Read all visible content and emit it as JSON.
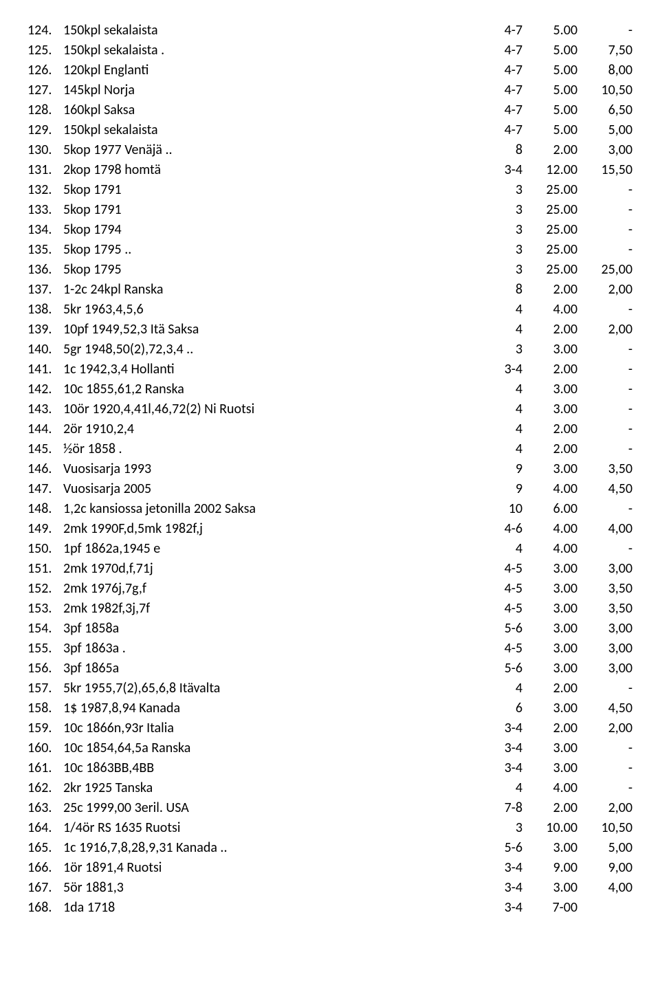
{
  "rows": [
    {
      "n": "124.",
      "d": "150kpl sekalaista",
      "c1": "4-7",
      "c2": "5.00",
      "c3": "-"
    },
    {
      "n": "125.",
      "d": "150kpl sekalaista .",
      "c1": "4-7",
      "c2": "5.00",
      "c3": "7,50"
    },
    {
      "n": "126.",
      "d": "120kpl Englanti",
      "c1": "4-7",
      "c2": "5.00",
      "c3": "8,00"
    },
    {
      "n": "127.",
      "d": "145kpl Norja",
      "c1": "4-7",
      "c2": "5.00",
      "c3": "10,50"
    },
    {
      "n": "128.",
      "d": "160kpl Saksa",
      "c1": "4-7",
      "c2": "5.00",
      "c3": "6,50"
    },
    {
      "n": "129.",
      "d": "150kpl sekalaista",
      "c1": "4-7",
      "c2": "5.00",
      "c3": "5,00"
    },
    {
      "n": "130.",
      "d": "5kop 1977 Venäjä ..",
      "c1": "8",
      "c2": "2.00",
      "c3": "3,00"
    },
    {
      "n": "131.",
      "d": "2kop 1798 homtä",
      "c1": "3-4",
      "c2": "12.00",
      "c3": "15,50"
    },
    {
      "n": "132.",
      "d": "5kop 1791",
      "c1": "3",
      "c2": "25.00",
      "c3": "-"
    },
    {
      "n": "133.",
      "d": "5kop 1791",
      "c1": "3",
      "c2": "25.00",
      "c3": "-"
    },
    {
      "n": "134.",
      "d": "5kop 1794",
      "c1": "3",
      "c2": "25.00",
      "c3": "-"
    },
    {
      "n": "135.",
      "d": "5kop 1795 ..",
      "c1": "3",
      "c2": "25.00",
      "c3": "-"
    },
    {
      "n": "136.",
      "d": "5kop 1795",
      "c1": "3",
      "c2": "25.00",
      "c3": "25,00"
    },
    {
      "n": "137.",
      "d": "1-2c 24kpl Ranska",
      "c1": "8",
      "c2": "2.00",
      "c3": "2,00"
    },
    {
      "n": "138.",
      "d": "5kr 1963,4,5,6",
      "c1": "4",
      "c2": "4.00",
      "c3": "-"
    },
    {
      "n": "139.",
      "d": "10pf 1949,52,3 Itä Saksa",
      "c1": "4",
      "c2": "2.00",
      "c3": "2,00"
    },
    {
      "n": "140.",
      "d": "5gr 1948,50(2),72,3,4 ..",
      "c1": "3",
      "c2": "3.00",
      "c3": "-"
    },
    {
      "n": "141.",
      "d": "1c 1942,3,4 Hollanti",
      "c1": "3-4",
      "c2": "2.00",
      "c3": "-"
    },
    {
      "n": "142.",
      "d": "10c 1855,61,2 Ranska",
      "c1": "4",
      "c2": "3.00",
      "c3": "-"
    },
    {
      "n": "143.",
      "d": "10ör 1920,4,41l,46,72(2) Ni Ruotsi",
      "c1": "4",
      "c2": "3.00",
      "c3": "-"
    },
    {
      "n": "144.",
      "d": "2ör 1910,2,4",
      "c1": "4",
      "c2": "2.00",
      "c3": "-"
    },
    {
      "n": "145.",
      "d": "½ör 1858 .",
      "c1": "4",
      "c2": "2.00",
      "c3": "-"
    },
    {
      "n": "146.",
      "d": "Vuosisarja 1993",
      "c1": "9",
      "c2": "3.00",
      "c3": "3,50"
    },
    {
      "n": "147.",
      "d": "Vuosisarja 2005",
      "c1": "9",
      "c2": "4.00",
      "c3": "4,50"
    },
    {
      "n": "148.",
      "d": "1,2c kansiossa jetonilla 2002 Saksa",
      "c1": "10",
      "c2": "6.00",
      "c3": "-"
    },
    {
      "n": "149.",
      "d": "2mk 1990F,d,5mk 1982f,j",
      "c1": "4-6",
      "c2": "4.00",
      "c3": "4,00"
    },
    {
      "n": "150.",
      "d": "1pf 1862a,1945 e",
      "c1": "4",
      "c2": "4.00",
      "c3": "-"
    },
    {
      "n": "151.",
      "d": "2mk 1970d,f,71j",
      "c1": "4-5",
      "c2": "3.00",
      "c3": "3,00"
    },
    {
      "n": "152.",
      "d": "2mk 1976j,7g,f",
      "c1": "4-5",
      "c2": "3.00",
      "c3": "3,50"
    },
    {
      "n": "153.",
      "d": "2mk 1982f,3j,7f",
      "c1": "4-5",
      "c2": "3.00",
      "c3": "3,50"
    },
    {
      "n": "154.",
      "d": "3pf 1858a",
      "c1": "5-6",
      "c2": "3.00",
      "c3": "3,00"
    },
    {
      "n": "155.",
      "d": "3pf 1863a .",
      "c1": "4-5",
      "c2": "3.00",
      "c3": "3,00"
    },
    {
      "n": "156.",
      "d": "3pf 1865a",
      "c1": "5-6",
      "c2": "3.00",
      "c3": "3,00"
    },
    {
      "n": "157.",
      "d": "5kr 1955,7(2),65,6,8 Itävalta",
      "c1": "4",
      "c2": "2.00",
      "c3": "-"
    },
    {
      "n": "158.",
      "d": "1$ 1987,8,94 Kanada",
      "c1": "6",
      "c2": "3.00",
      "c3": "4,50"
    },
    {
      "n": "159.",
      "d": "10c 1866n,93r Italia",
      "c1": "3-4",
      "c2": "2.00",
      "c3": "2,00"
    },
    {
      "n": "160.",
      "d": "10c 1854,64,5a Ranska",
      "c1": "3-4",
      "c2": "3.00",
      "c3": "-"
    },
    {
      "n": "161.",
      "d": "10c 1863BB,4BB",
      "c1": "3-4",
      "c2": "3.00",
      "c3": "-"
    },
    {
      "n": "162.",
      "d": "2kr 1925 Tanska",
      "c1": "4",
      "c2": "4.00",
      "c3": "-"
    },
    {
      "n": "163.",
      "d": "25c 1999,00 3eril. USA",
      "c1": "7-8",
      "c2": "2.00",
      "c3": "2,00"
    },
    {
      "n": "164.",
      "d": "1/4ör RS 1635 Ruotsi",
      "c1": "3",
      "c2": "10.00",
      "c3": "10,50"
    },
    {
      "n": "165.",
      "d": "1c 1916,7,8,28,9,31 Kanada ..",
      "c1": "5-6",
      "c2": "3.00",
      "c3": "5,00"
    },
    {
      "n": "166.",
      "d": "1ör 1891,4 Ruotsi",
      "c1": "3-4",
      "c2": "9.00",
      "c3": "9,00"
    },
    {
      "n": "167.",
      "d": "5ör 1881,3",
      "c1": "3-4",
      "c2": "3.00",
      "c3": "4,00"
    },
    {
      "n": "168.",
      "d": "1da 1718",
      "c1": "3-4",
      "c2": "7-00",
      "c3": ""
    }
  ]
}
